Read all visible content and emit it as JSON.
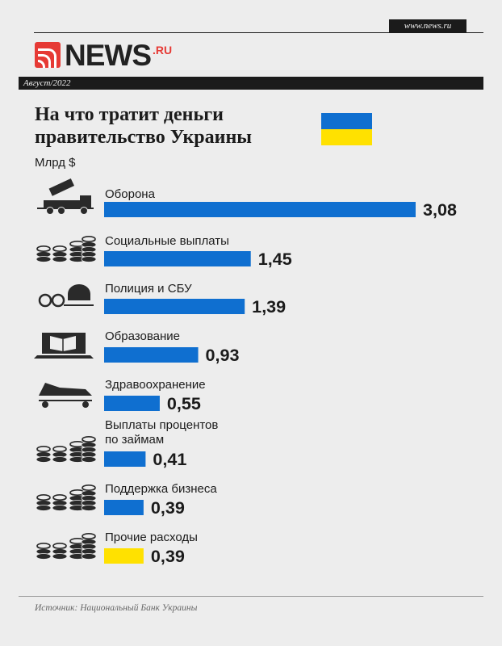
{
  "site_url": "www.news.ru",
  "logo": {
    "word": "NEWS",
    "suffix": ".RU",
    "brand_color": "#e63a35"
  },
  "date": "Август/2022",
  "title_line1": "На что тратит деньги",
  "title_line2": "правительство Украины",
  "unit": "Млрд $",
  "colors": {
    "bar_blue": "#0f6fd0",
    "bar_yellow": "#ffe100",
    "flag_blue": "#0f6fd0",
    "flag_yellow": "#ffe100"
  },
  "chart_data": {
    "type": "bar",
    "orientation": "horizontal",
    "categories": [
      "Оборона",
      "Социальные выплаты",
      "Полиция и СБУ",
      "Образование",
      "Здравоохранение",
      "Выплаты процентов по займам",
      "Поддержка бизнеса",
      "Прочие расходы"
    ],
    "category_lines": [
      [
        "Оборона"
      ],
      [
        "Социальные выплаты"
      ],
      [
        "Полиция и СБУ"
      ],
      [
        "Образование"
      ],
      [
        "Здравоохранение"
      ],
      [
        "Выплаты процентов",
        "по займам"
      ],
      [
        "Поддержка бизнеса"
      ],
      [
        "Прочие расходы"
      ]
    ],
    "values": [
      3.08,
      1.45,
      1.39,
      0.93,
      0.55,
      0.41,
      0.39,
      0.39
    ],
    "value_labels": [
      "3,08",
      "1,45",
      "1,39",
      "0,93",
      "0,55",
      "0,41",
      "0,39",
      "0,39"
    ],
    "bar_colors": [
      "#0f6fd0",
      "#0f6fd0",
      "#0f6fd0",
      "#0f6fd0",
      "#0f6fd0",
      "#0f6fd0",
      "#0f6fd0",
      "#ffe100"
    ],
    "icons": [
      "rocket-launcher-truck-icon",
      "coin-stacks-icon",
      "handcuffs-helmet-icon",
      "laptop-book-icon",
      "stretcher-icon",
      "coin-stacks-icon",
      "coin-stacks-icon",
      "coin-stacks-icon"
    ],
    "ylabel": "Млрд $",
    "xlim": [
      0,
      3.08
    ],
    "grid": false,
    "legend": "none"
  },
  "source": "Источник: Национальный Банк Украины"
}
